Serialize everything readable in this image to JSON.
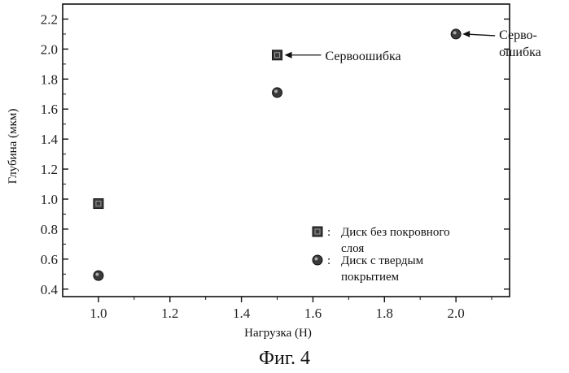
{
  "chart_data": {
    "type": "scatter",
    "title": "",
    "xlabel": "Нагрузка (Н)",
    "ylabel": "Глубина (мкм)",
    "xlim": [
      0.9,
      2.15
    ],
    "ylim": [
      0.35,
      2.3
    ],
    "xticks": [
      1.0,
      1.2,
      1.4,
      1.6,
      1.8,
      2.0
    ],
    "xtick_labels": [
      "1.0",
      "1.2",
      "1.4",
      "1.6",
      "1.8",
      "2.0"
    ],
    "yticks": [
      0.4,
      0.6,
      0.8,
      1.0,
      1.2,
      1.4,
      1.6,
      1.8,
      2.0,
      2.2
    ],
    "ytick_labels": [
      "0.4",
      "0.6",
      "0.8",
      "1.0",
      "1.2",
      "1.4",
      "1.6",
      "1.8",
      "2.0",
      "2.2"
    ],
    "grid": false,
    "legend_position": "bottom-right",
    "series": [
      {
        "name": "Диск без покровного слоя",
        "marker": "square",
        "color": "#2b2b2b",
        "x": [
          1.0,
          1.5
        ],
        "y": [
          0.97,
          1.96
        ]
      },
      {
        "name": "Диск с твердым покрытием",
        "marker": "circle",
        "color": "#2b2b2b",
        "x": [
          1.0,
          1.5,
          2.0
        ],
        "y": [
          0.49,
          1.71,
          2.1
        ]
      }
    ],
    "annotations": [
      {
        "text": "Сервоошибка",
        "x": 1.5,
        "y": 1.96
      },
      {
        "text_lines": [
          "Серво-",
          "ошибка"
        ],
        "x": 2.0,
        "y": 2.1
      }
    ],
    "legend_entries": [
      {
        "marker": "square",
        "lines": [
          "Диск без покровного",
          "слоя"
        ]
      },
      {
        "marker": "circle",
        "lines": [
          "Диск с твердым",
          "покрытием"
        ]
      }
    ],
    "legend_separator": ":"
  },
  "caption": "Фиг. 4"
}
